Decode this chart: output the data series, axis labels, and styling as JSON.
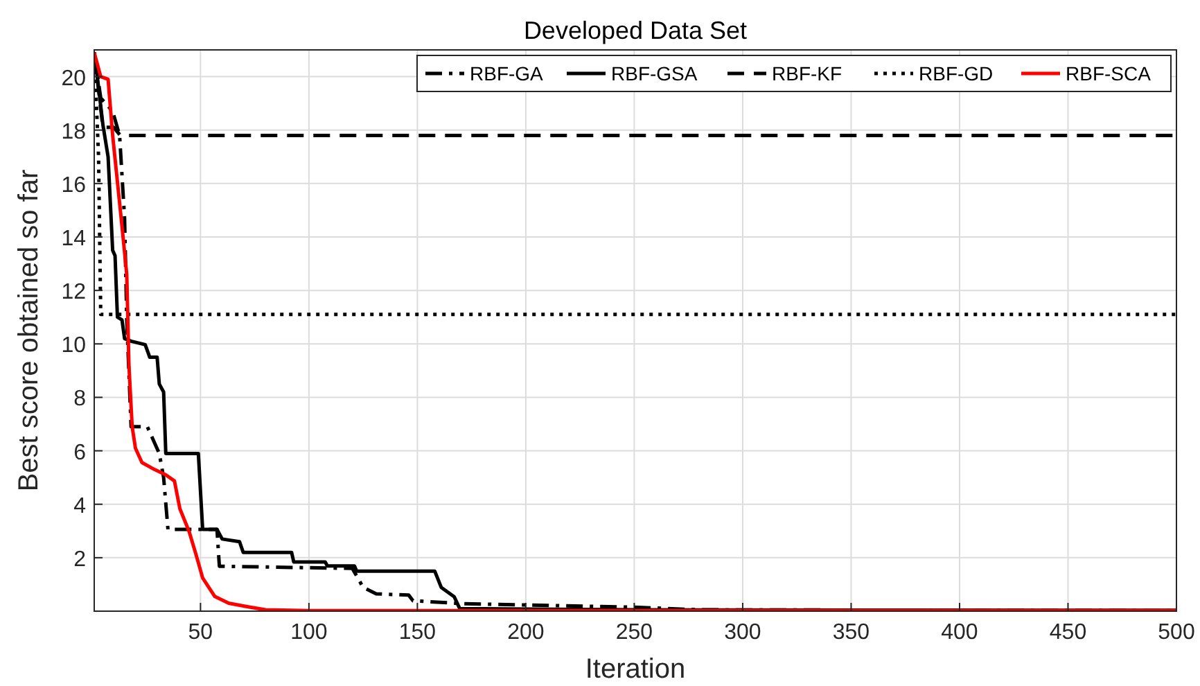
{
  "chart_data": {
    "type": "line",
    "title": "Developed Data Set",
    "xlabel": "Iteration",
    "ylabel": "Best score obtained so far",
    "xlim": [
      1,
      500
    ],
    "ylim": [
      0,
      21
    ],
    "xticks": [
      50,
      100,
      150,
      200,
      250,
      300,
      350,
      400,
      450,
      500
    ],
    "yticks": [
      2,
      4,
      6,
      8,
      10,
      12,
      14,
      16,
      18,
      20
    ],
    "grid": true,
    "legend": "top right",
    "series": [
      {
        "name": "RBF-GA",
        "color": "#000000",
        "line_style": "dashdot",
        "x": [
          1,
          4,
          9.5,
          12.7,
          15,
          16,
          18,
          25.5,
          31,
          33,
          35,
          57.6,
          58.7,
          120,
          125,
          131,
          146,
          148,
          171,
          250,
          280,
          500
        ],
        "values": [
          20.9,
          19.2,
          18.7,
          17.8,
          14.7,
          10.9,
          6.9,
          6.9,
          5.9,
          5.0,
          3.06,
          3.06,
          1.68,
          1.6,
          0.89,
          0.65,
          0.6,
          0.39,
          0.28,
          0.15,
          0.05,
          0.02
        ]
      },
      {
        "name": "RBF-GSA",
        "color": "#000000",
        "line_style": "solid",
        "x": [
          1,
          3,
          5,
          7.4,
          9.5,
          10.6,
          11.7,
          13.8,
          15,
          18,
          24.5,
          26.6,
          30,
          31,
          33,
          34,
          49,
          51,
          57.6,
          60,
          68,
          69.7,
          92,
          93,
          107.5,
          108.5,
          121,
          122,
          158,
          161,
          167,
          169.5,
          250,
          500
        ],
        "values": [
          20.9,
          19.6,
          18.2,
          17,
          13.5,
          13.3,
          11.0,
          10.9,
          10.2,
          10.1,
          9.97,
          9.5,
          9.5,
          8.5,
          8.2,
          5.9,
          5.9,
          3.06,
          3.06,
          2.7,
          2.6,
          2.2,
          2.2,
          1.84,
          1.84,
          1.69,
          1.69,
          1.5,
          1.5,
          0.89,
          0.54,
          0.1,
          0.05,
          0.03
        ]
      },
      {
        "name": "RBF-KF",
        "color": "#000000",
        "line_style": "dashed",
        "x": [
          1,
          3,
          5,
          10,
          13,
          500
        ],
        "values": [
          20.9,
          19.5,
          18.1,
          18.1,
          17.8,
          17.8
        ]
      },
      {
        "name": "RBF-GD",
        "color": "#000000",
        "line_style": "dotted",
        "x": [
          1,
          2,
          3,
          4,
          500
        ],
        "values": [
          20.9,
          19,
          17,
          11.1,
          11.1
        ]
      },
      {
        "name": "RBF-SCA",
        "color": "#ff0000",
        "line_style": "solid",
        "x": [
          1,
          4,
          7.4,
          9.5,
          13.8,
          16,
          17,
          18.5,
          20,
          23,
          28.8,
          34,
          38,
          40.5,
          44.8,
          48,
          51,
          56.6,
          63,
          71.5,
          80,
          100,
          500
        ],
        "values": [
          20.9,
          20,
          19.9,
          17.8,
          14.4,
          12.6,
          9.2,
          6.9,
          6.1,
          5.56,
          5.3,
          5.1,
          4.87,
          3.83,
          2.97,
          2.1,
          1.24,
          0.55,
          0.3,
          0.17,
          0.05,
          0.02,
          0.02
        ]
      }
    ]
  }
}
